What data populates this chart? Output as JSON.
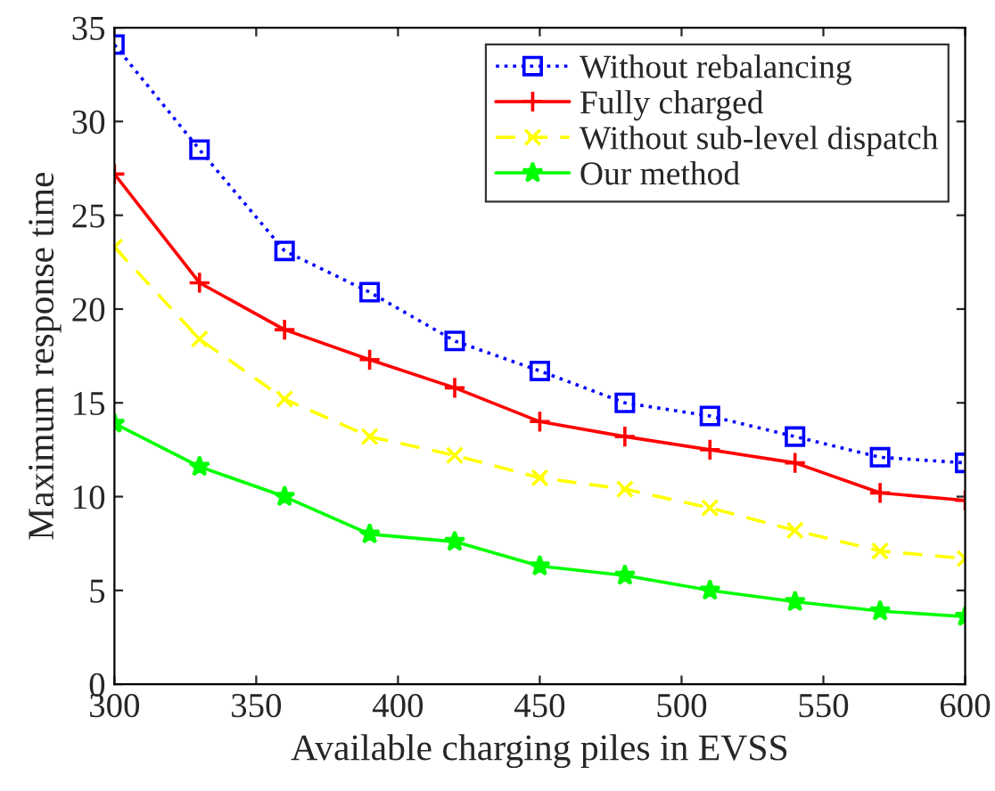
{
  "chart_data": {
    "type": "line",
    "xlabel": "Available charging piles in EVSS",
    "ylabel": "Maximum response time",
    "x": [
      300,
      330,
      360,
      390,
      420,
      450,
      480,
      510,
      540,
      570,
      600
    ],
    "xlim": [
      300,
      600
    ],
    "xticks": [
      300,
      350,
      400,
      450,
      500,
      550,
      600
    ],
    "ylim": [
      0,
      35
    ],
    "yticks": [
      0,
      5,
      10,
      15,
      20,
      25,
      30,
      35
    ],
    "grid": false,
    "legend": "top right",
    "series": [
      {
        "name": "Without rebalancing",
        "color": "#0000ff",
        "line_style": "dotted",
        "marker": "square",
        "values": [
          34.1,
          28.5,
          23.1,
          20.9,
          18.3,
          16.7,
          15.0,
          14.3,
          13.2,
          12.1,
          11.8
        ]
      },
      {
        "name": "Fully charged",
        "color": "#ff0000",
        "line_style": "solid",
        "marker": "plus",
        "values": [
          27.2,
          21.4,
          18.9,
          17.3,
          15.8,
          14.0,
          13.2,
          12.5,
          11.8,
          10.2,
          9.8
        ]
      },
      {
        "name": "Without sub-level dispatch",
        "color": "#ffff00",
        "line_style": "dashed",
        "marker": "cross",
        "values": [
          23.3,
          18.4,
          15.2,
          13.2,
          12.2,
          11.0,
          10.4,
          9.4,
          8.2,
          7.1,
          6.7
        ]
      },
      {
        "name": "Our method",
        "color": "#00ff00",
        "line_style": "solid",
        "marker": "star",
        "values": [
          13.9,
          11.6,
          10.0,
          8.0,
          7.6,
          6.3,
          5.8,
          5.0,
          4.4,
          3.9,
          3.6
        ]
      }
    ]
  }
}
